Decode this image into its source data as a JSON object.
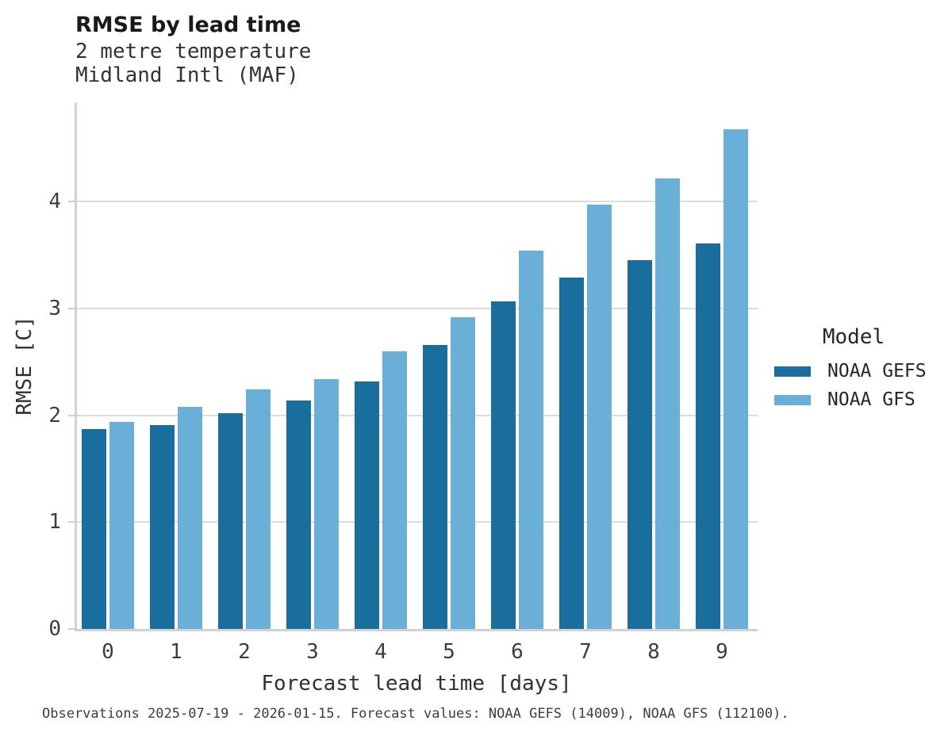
{
  "header": {
    "title": "RMSE by lead time",
    "subtitle_line1": "2 metre temperature",
    "subtitle_line2": "Midland Intl (MAF)"
  },
  "chart_data": {
    "type": "bar",
    "title": "RMSE by lead time",
    "subtitle": [
      "2 metre temperature",
      "Midland Intl (MAF)"
    ],
    "xlabel": "Forecast lead time [days]",
    "ylabel": "RMSE [C]",
    "categories": [
      "0",
      "1",
      "2",
      "3",
      "4",
      "5",
      "6",
      "7",
      "8",
      "9"
    ],
    "series": [
      {
        "name": "NOAA GEFS",
        "color": "#1a6e9e",
        "values": [
          1.87,
          1.91,
          2.02,
          2.14,
          2.32,
          2.66,
          3.07,
          3.29,
          3.45,
          3.61
        ]
      },
      {
        "name": "NOAA GFS",
        "color": "#69afd8",
        "values": [
          1.94,
          2.08,
          2.24,
          2.34,
          2.6,
          2.92,
          3.54,
          3.97,
          4.22,
          4.68
        ]
      }
    ],
    "ylim": [
      0,
      4.93
    ],
    "yticks": [
      0,
      1,
      2,
      3,
      4
    ],
    "grid": true,
    "legend_title": "Model",
    "legend_position": "right"
  },
  "legend": {
    "title": "Model",
    "items": [
      {
        "label": "NOAA GEFS",
        "color": "#1a6e9e"
      },
      {
        "label": "NOAA GFS",
        "color": "#69afd8"
      }
    ]
  },
  "caption": "Observations 2025-07-19 - 2026-01-15. Forecast values: NOAA GEFS (14009), NOAA GFS (112100)."
}
